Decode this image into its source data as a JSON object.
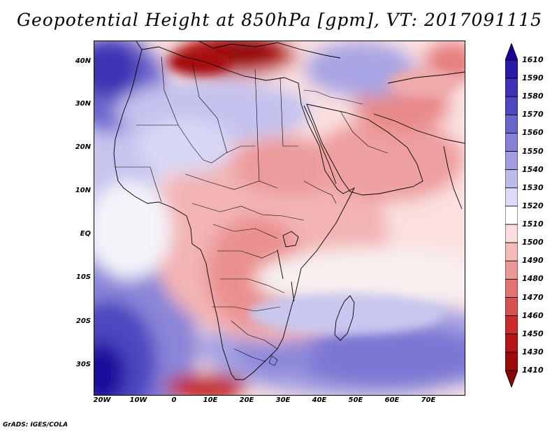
{
  "title": "Geopotential Height at 850hPa [gpm], VT: 2017091115",
  "credit": "GrADS: IGES/COLA",
  "latitude_labels": [
    "40N",
    "30N",
    "20N",
    "10N",
    "EQ",
    "10S",
    "20S",
    "30S"
  ],
  "longitude_labels": [
    "20W",
    "10W",
    "0",
    "10E",
    "20E",
    "30E",
    "40E",
    "50E",
    "60E",
    "70E"
  ],
  "colorbar": {
    "levels": [
      "1610",
      "1590",
      "1580",
      "1570",
      "1560",
      "1550",
      "1540",
      "1530",
      "1520",
      "1510",
      "1500",
      "1490",
      "1480",
      "1470",
      "1460",
      "1450",
      "1430",
      "1410"
    ],
    "colors": [
      "#1a0099",
      "#2a1aa8",
      "#3e32b6",
      "#5048c2",
      "#6a64cd",
      "#8580d8",
      "#a09de2",
      "#bdbbec",
      "#dcdcf6",
      "#ffffff",
      "#fbdcdc",
      "#f5baba",
      "#ec9797",
      "#e27474",
      "#d85050",
      "#cc2a2a",
      "#b51515",
      "#9c0a0a",
      "#850505"
    ]
  }
}
